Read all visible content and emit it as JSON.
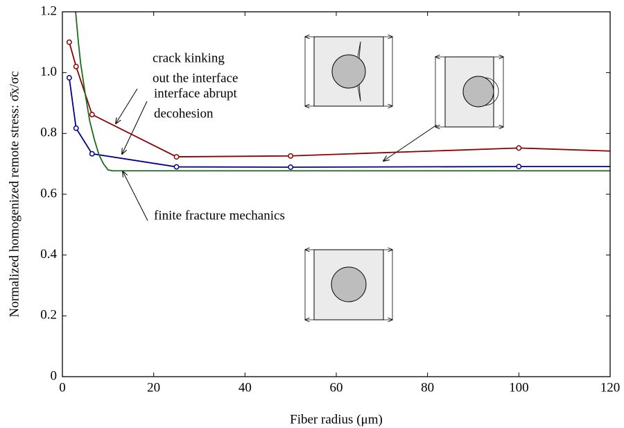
{
  "chart_data": {
    "type": "line",
    "xlabel": "Fiber radius (μm)",
    "ylabel": "Normalized homogenized remote stress: σ̄x/σc",
    "xlim": [
      0,
      120
    ],
    "xticks": [
      0,
      20,
      40,
      60,
      80,
      100,
      120
    ],
    "ylim": [
      0,
      1.2
    ],
    "yticks": [
      0,
      0.2,
      0.4,
      0.6,
      0.8,
      {
        "value": 1,
        "label": "1.0"
      },
      1.2
    ],
    "series": [
      {
        "name": "crack kinking out the interface",
        "color": "#8b0000",
        "marker": true,
        "x": [
          1.5,
          3,
          6.5,
          25,
          50,
          100,
          120
        ],
        "values": [
          1.1,
          1.02,
          0.862,
          0.723,
          0.726,
          0.752,
          0.742
        ]
      },
      {
        "name": "interface abrupt decohesion",
        "color": "#00008b",
        "marker": true,
        "x": [
          1.5,
          3,
          6.5,
          25,
          50,
          100,
          120
        ],
        "values": [
          0.983,
          0.817,
          0.733,
          0.69,
          0.689,
          0.691,
          0.691
        ]
      },
      {
        "name": "finite fracture mechanics",
        "color": "#1a6b1a",
        "marker": false,
        "x": [
          2.9,
          3.5,
          4,
          5,
          6,
          7,
          8,
          9,
          10,
          11,
          120
        ],
        "values": [
          1.2,
          1.1,
          1.03,
          0.93,
          0.84,
          0.78,
          0.73,
          0.7,
          0.68,
          0.677,
          0.677
        ]
      }
    ],
    "annotations": [
      {
        "lines": [
          "crack kinking",
          "out the interface"
        ]
      },
      {
        "lines": [
          "interface abrupt",
          "decohesion"
        ]
      },
      {
        "lines": [
          "finite fracture mechanics"
        ]
      }
    ]
  }
}
